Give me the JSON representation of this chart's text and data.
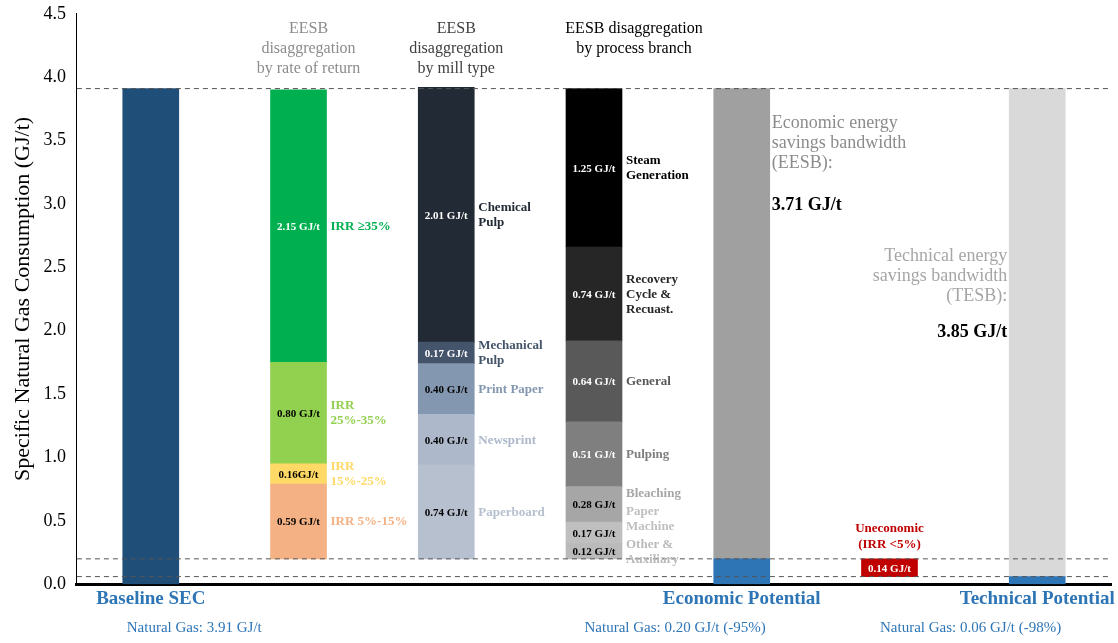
{
  "chart_data": {
    "type": "bar",
    "ylabel": "Specific Natural Gas Consumption (GJ/t)",
    "categories": [
      "Baseline SEC",
      null,
      null,
      null,
      "Economic Potential",
      null,
      "Technical Potential"
    ],
    "ylim": [
      0,
      4.5
    ],
    "yticks": [
      {
        "value": 0,
        "label": "0.0"
      },
      0.5,
      {
        "value": 1,
        "label": "1.0"
      },
      1.5,
      {
        "value": 2,
        "label": "2.0"
      },
      2.5,
      {
        "value": 3,
        "label": "3.0"
      },
      3.5,
      {
        "value": 4,
        "label": "4.0"
      },
      4.5
    ],
    "grid": false,
    "legend": false,
    "series": [
      {
        "color": "#1f4e79",
        "values": [
          3.91,
          null,
          null,
          null,
          null,
          null,
          null
        ],
        "base": [
          0,
          null,
          null,
          null,
          null,
          null,
          null
        ]
      },
      {
        "name": "IRR 5%-15%",
        "color": "#f4b183",
        "values": [
          null,
          0.59,
          null,
          null,
          null,
          null,
          null
        ],
        "base": [
          null,
          0.2,
          null,
          null,
          null,
          null,
          null
        ],
        "value_labels": [
          null,
          "0.59 GJ/t",
          null,
          null,
          null,
          null,
          null
        ]
      },
      {
        "name": "IRR 15%-25%",
        "color": "#ffd966",
        "values": [
          null,
          0.16,
          null,
          null,
          null,
          null,
          null
        ],
        "base": [
          null,
          0.79,
          null,
          null,
          null,
          null,
          null
        ],
        "value_labels": [
          null,
          "0.16GJ/t",
          null,
          null,
          null,
          null,
          null
        ]
      },
      {
        "name": "IRR 25%-35%",
        "color": "#92d050",
        "values": [
          null,
          0.8,
          null,
          null,
          null,
          null,
          null
        ],
        "base": [
          null,
          0.95,
          null,
          null,
          null,
          null,
          null
        ],
        "value_labels": [
          null,
          "0.80 GJ/t",
          null,
          null,
          null,
          null,
          null
        ]
      },
      {
        "name": "IRR ≥35%",
        "color": "#00b050",
        "values": [
          null,
          2.15,
          null,
          null,
          null,
          null,
          null
        ],
        "base": [
          null,
          1.75,
          null,
          null,
          null,
          null,
          null
        ],
        "value_labels": [
          null,
          "2.15 GJ/t",
          null,
          null,
          null,
          null,
          null
        ]
      },
      {
        "name": "Paperboard",
        "color": "#b6c0cf",
        "values": [
          null,
          null,
          0.74,
          null,
          null,
          null,
          null
        ],
        "base": [
          null,
          null,
          0.2,
          null,
          null,
          null,
          null
        ],
        "value_labels": [
          null,
          null,
          "0.74 GJ/t",
          null,
          null,
          null,
          null
        ]
      },
      {
        "name": "Newsprint",
        "color": "#adb9ca",
        "values": [
          null,
          null,
          0.4,
          null,
          null,
          null,
          null
        ],
        "base": [
          null,
          null,
          0.94,
          null,
          null,
          null,
          null
        ],
        "value_labels": [
          null,
          null,
          "0.40 GJ/t",
          null,
          null,
          null,
          null
        ]
      },
      {
        "name": "Print Paper",
        "color": "#8497b0",
        "values": [
          null,
          null,
          0.4,
          null,
          null,
          null,
          null
        ],
        "base": [
          null,
          null,
          1.34,
          null,
          null,
          null,
          null
        ],
        "value_labels": [
          null,
          null,
          "0.40 GJ/t",
          null,
          null,
          null,
          null
        ]
      },
      {
        "name": "Mechanical Pulp",
        "color": "#44546a",
        "values": [
          null,
          null,
          0.17,
          null,
          null,
          null,
          null
        ],
        "base": [
          null,
          null,
          1.74,
          null,
          null,
          null,
          null
        ],
        "value_labels": [
          null,
          null,
          "0.17 GJ/t",
          null,
          null,
          null,
          null
        ]
      },
      {
        "name": "Chemical Pulp",
        "color": "#222a35",
        "values": [
          null,
          null,
          2.01,
          null,
          null,
          null,
          null
        ],
        "base": [
          null,
          null,
          1.91,
          null,
          null,
          null,
          null
        ],
        "value_labels": [
          null,
          null,
          "2.01 GJ/t",
          null,
          null,
          null,
          null
        ]
      },
      {
        "name": "Other & Auxiliary",
        "color": "#bababa",
        "values": [
          null,
          null,
          null,
          0.12,
          null,
          null,
          null
        ],
        "base": [
          null,
          null,
          null,
          0.2,
          null,
          null,
          null
        ],
        "value_labels": [
          null,
          null,
          null,
          "0.12 GJ/t",
          null,
          null,
          null
        ]
      },
      {
        "name": "Paper Machine",
        "color": "#bfbfbf",
        "values": [
          null,
          null,
          null,
          0.17,
          null,
          null,
          null
        ],
        "base": [
          null,
          null,
          null,
          0.32,
          null,
          null,
          null
        ],
        "value_labels": [
          null,
          null,
          null,
          "0.17 GJ/t",
          null,
          null,
          null
        ]
      },
      {
        "name": "Bleaching",
        "color": "#a6a6a6",
        "values": [
          null,
          null,
          null,
          0.28,
          null,
          null,
          null
        ],
        "base": [
          null,
          null,
          null,
          0.49,
          null,
          null,
          null
        ],
        "value_labels": [
          null,
          null,
          null,
          "0.28 GJ/t",
          null,
          null,
          null
        ]
      },
      {
        "name": "Pulping",
        "color": "#7f7f7f",
        "values": [
          null,
          null,
          null,
          0.51,
          null,
          null,
          null
        ],
        "base": [
          null,
          null,
          null,
          0.77,
          null,
          null,
          null
        ],
        "value_labels": [
          null,
          null,
          null,
          "0.51 GJ/t",
          null,
          null,
          null
        ]
      },
      {
        "name": "General",
        "color": "#595959",
        "values": [
          null,
          null,
          null,
          0.64,
          null,
          null,
          null
        ],
        "base": [
          null,
          null,
          null,
          1.28,
          null,
          null,
          null
        ],
        "value_labels": [
          null,
          null,
          null,
          "0.64 GJ/t",
          null,
          null,
          null
        ]
      },
      {
        "name": "Recovery Cycle & Recuast.",
        "color": "#262626",
        "values": [
          null,
          null,
          null,
          0.74,
          null,
          null,
          null
        ],
        "base": [
          null,
          null,
          null,
          1.92,
          null,
          null,
          null
        ],
        "value_labels": [
          null,
          null,
          null,
          "0.74 GJ/t",
          null,
          null,
          null
        ]
      },
      {
        "name": "Steam Generation",
        "color": "#000000",
        "values": [
          null,
          null,
          null,
          1.25,
          null,
          null,
          null
        ],
        "base": [
          null,
          null,
          null,
          2.66,
          null,
          null,
          null
        ],
        "value_labels": [
          null,
          null,
          null,
          "1.25 GJ/t",
          null,
          null,
          null
        ]
      },
      {
        "color": "#2e75b6",
        "values": [
          null,
          null,
          null,
          null,
          0.2,
          null,
          null
        ],
        "base": [
          null,
          null,
          null,
          null,
          0,
          null,
          null
        ]
      },
      {
        "color": "#a0a0a0",
        "values": [
          null,
          null,
          null,
          null,
          3.71,
          null,
          null
        ],
        "base": [
          null,
          null,
          null,
          null,
          0.2,
          null,
          null
        ]
      },
      {
        "name": "Uneconomic (IRR <5%)",
        "color": "#c00000",
        "values": [
          null,
          null,
          null,
          null,
          null,
          0.14,
          null
        ],
        "base": [
          null,
          null,
          null,
          null,
          null,
          0.06,
          null
        ],
        "value_labels": [
          null,
          null,
          null,
          null,
          null,
          "0.14 GJ/t",
          null
        ]
      },
      {
        "color": "#2e75b6",
        "values": [
          null,
          null,
          null,
          null,
          null,
          null,
          0.06
        ],
        "base": [
          null,
          null,
          null,
          null,
          null,
          null,
          0
        ]
      },
      {
        "color": "#d9d9d9",
        "values": [
          null,
          null,
          null,
          null,
          null,
          null,
          3.85
        ],
        "base": [
          null,
          null,
          null,
          null,
          null,
          null,
          0.06
        ]
      }
    ],
    "ref_lines": [
      {
        "axis": "y",
        "value": 3.91,
        "line_style": "dashed",
        "color": "#555555"
      },
      {
        "axis": "y",
        "value": 0.2,
        "line_style": "dashed",
        "color": "#555555"
      },
      {
        "axis": "y",
        "value": 0.06,
        "line_style": "dashed",
        "color": "#555555"
      }
    ],
    "annotations": [
      "EESB disaggregation by rate of return",
      "EESB disaggregation by mill type",
      "EESB disaggregation by process branch",
      "Economic energy savings bandwidth (EESB):",
      "3.71 GJ/t",
      "Technical energy savings bandwidth (TESB):",
      "3.85 GJ/t",
      "Natural Gas: 3.91 GJ/t",
      "Natural Gas: 0.20 GJ/t (-95%)",
      "Natural Gas: 0.06 GJ/t (-98%)"
    ]
  }
}
